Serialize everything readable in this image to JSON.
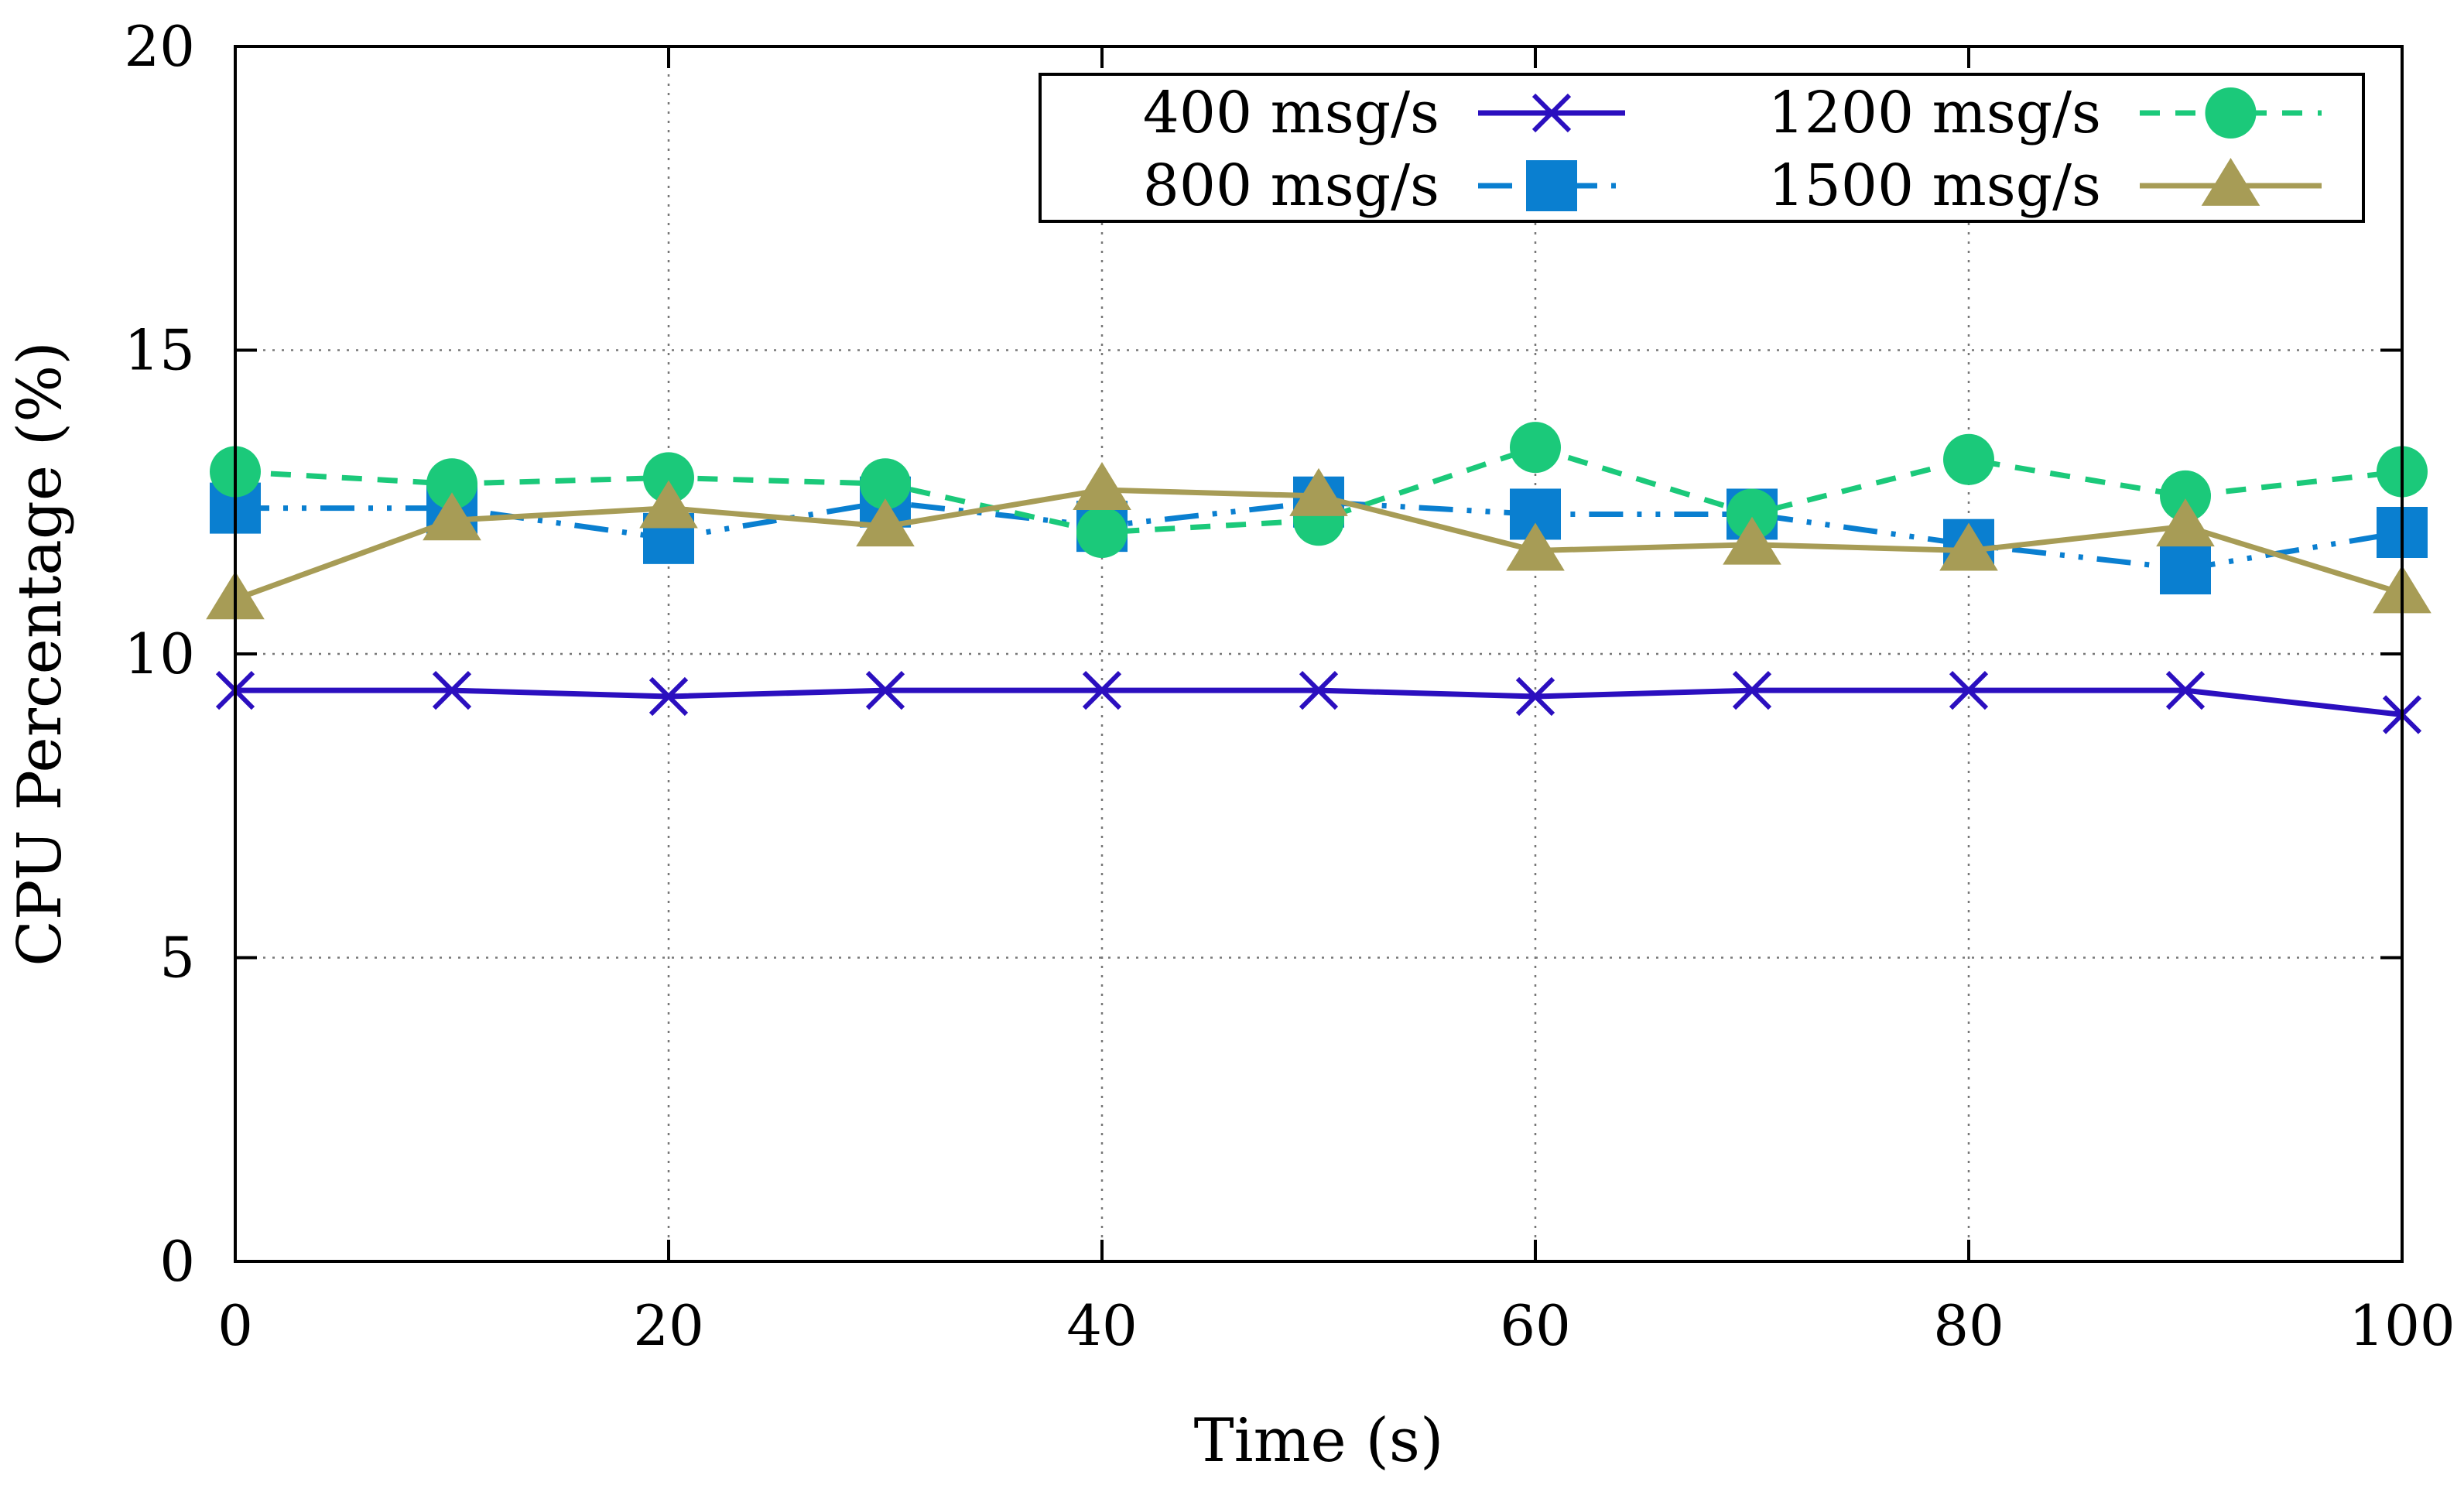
{
  "chart_data": {
    "type": "line",
    "title": "",
    "xlabel": "Time (s)",
    "ylabel": "CPU Percentage (%)",
    "xlim": [
      0,
      100
    ],
    "ylim": [
      0,
      20
    ],
    "xticks": [
      "0",
      "20",
      "40",
      "60",
      "80",
      "100"
    ],
    "yticks": [
      "0",
      "5",
      "10",
      "15",
      "20"
    ],
    "grid": true,
    "legend_position": "top-right",
    "x": [
      0,
      10,
      20,
      30,
      40,
      50,
      60,
      70,
      80,
      90,
      100
    ],
    "series": [
      {
        "name": "400 msg/s",
        "color": "#2b0fbf",
        "marker": "x",
        "dash": "solid",
        "values": [
          9.4,
          9.4,
          9.3,
          9.4,
          9.4,
          9.4,
          9.3,
          9.4,
          9.4,
          9.4,
          9.0
        ]
      },
      {
        "name": "800 msg/s",
        "color": "#0a7fd0",
        "marker": "square",
        "dash": "dash-dot-dot",
        "values": [
          12.4,
          12.4,
          11.9,
          12.5,
          12.1,
          12.5,
          12.3,
          12.3,
          11.8,
          11.4,
          12.0
        ]
      },
      {
        "name": "1200 msg/s",
        "color": "#1bc97a",
        "marker": "circle",
        "dash": "dashed",
        "values": [
          13.0,
          12.8,
          12.9,
          12.8,
          12.0,
          12.2,
          13.4,
          12.3,
          13.2,
          12.6,
          13.0
        ]
      },
      {
        "name": "1500 msg/s",
        "color": "#a79c56",
        "marker": "triangle",
        "dash": "solid",
        "values": [
          10.9,
          12.2,
          12.4,
          12.1,
          12.7,
          12.6,
          11.7,
          11.8,
          11.7,
          12.1,
          11.0
        ]
      }
    ]
  }
}
